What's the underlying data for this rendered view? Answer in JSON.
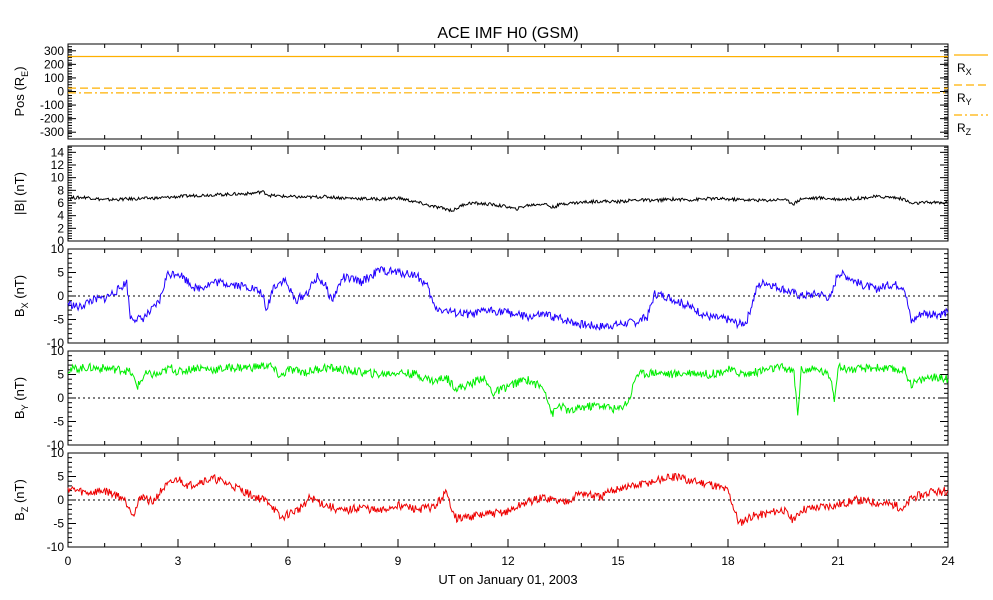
{
  "chart_data": [
    {
      "type": "line",
      "panel": "position",
      "title": "ACE IMF H0 (GSM)",
      "ylabel": "Pos (R_E)",
      "ylabel_main": "Pos (R",
      "ylabel_sub": "E",
      "ylabel_close": ")",
      "ylim": [
        -350,
        350
      ],
      "yticks": [
        -300,
        -200,
        -100,
        0,
        100,
        200,
        300
      ],
      "ytick_labels": [
        "-300",
        "-200",
        "-100",
        "0",
        "100",
        "200",
        "300"
      ],
      "series": [
        {
          "name": "R_X",
          "label_main": "R",
          "label_sub": "X",
          "style": "solid",
          "color": "#FFB000",
          "values": [
            258,
            257
          ]
        },
        {
          "name": "R_Y",
          "label_main": "R",
          "label_sub": "Y",
          "style": "dashed",
          "color": "#FFB000",
          "values": [
            25,
            24
          ]
        },
        {
          "name": "R_Z",
          "label_main": "R",
          "label_sub": "Z",
          "style": "dashdot",
          "color": "#FFB000",
          "values": [
            -10,
            -9
          ]
        }
      ],
      "x": [
        0,
        24
      ],
      "xlim": [
        0,
        24
      ]
    },
    {
      "type": "line",
      "panel": "B_total",
      "ylabel": "|B| (nT)",
      "ylim": [
        0,
        15
      ],
      "yticks": [
        0,
        2,
        4,
        6,
        8,
        10,
        12,
        14
      ],
      "ytick_labels": [
        "0",
        "2",
        "4",
        "6",
        "8",
        "10",
        "12",
        "14"
      ],
      "color": "#000000",
      "xlim": [
        0,
        24
      ],
      "x": [
        0,
        0.5,
        1,
        1.5,
        2,
        2.5,
        3,
        3.5,
        4,
        4.5,
        5,
        5.3,
        5.5,
        6,
        6.5,
        7,
        7.5,
        8,
        8.5,
        9,
        9.3,
        9.6,
        9.9,
        10.2,
        10.5,
        10.8,
        11,
        11.5,
        12,
        12.2,
        12.5,
        13,
        13.2,
        13.5,
        14,
        14.5,
        15,
        15.5,
        16,
        16.5,
        17,
        17.5,
        18,
        18.5,
        19,
        19.5,
        19.8,
        20,
        20.5,
        21,
        21.5,
        22,
        22.5,
        22.8,
        23,
        23.5,
        24
      ],
      "values": [
        6.8,
        6.9,
        6.5,
        6.6,
        6.7,
        6.8,
        7.0,
        7.2,
        7.3,
        7.4,
        7.5,
        7.8,
        7.2,
        7.0,
        6.9,
        7.0,
        6.8,
        6.7,
        6.6,
        6.8,
        6.4,
        6.0,
        5.5,
        5.2,
        4.8,
        5.8,
        6.0,
        5.8,
        5.4,
        5.0,
        5.6,
        5.9,
        5.3,
        5.9,
        6.1,
        6.3,
        6.2,
        6.5,
        6.4,
        6.6,
        6.5,
        6.7,
        6.6,
        6.5,
        6.4,
        6.6,
        5.9,
        6.7,
        6.8,
        6.6,
        6.7,
        7.0,
        6.9,
        6.6,
        5.9,
        6.1,
        6.0
      ]
    },
    {
      "type": "line",
      "panel": "B_x",
      "ylabel": "B_X (nT)",
      "ylabel_main": "B",
      "ylabel_sub": "X",
      "ylabel_close": " (nT)",
      "ylim": [
        -10,
        10
      ],
      "yticks": [
        -10,
        -5,
        0,
        5,
        10
      ],
      "ytick_labels": [
        "-10",
        "-5",
        "0",
        "5",
        "10"
      ],
      "zero_line": true,
      "color": "#2200FF",
      "xlim": [
        0,
        24
      ],
      "x": [
        0,
        0.3,
        0.6,
        1.0,
        1.4,
        1.6,
        1.7,
        2.0,
        2.3,
        2.5,
        2.7,
        3.0,
        3.5,
        4.0,
        4.5,
        5.0,
        5.3,
        5.4,
        5.6,
        5.9,
        6.2,
        6.5,
        6.8,
        7.0,
        7.2,
        7.5,
        8.0,
        8.3,
        8.5,
        9.0,
        9.5,
        9.8,
        10.0,
        10.5,
        11.0,
        11.5,
        12.0,
        12.5,
        13.0,
        13.5,
        14.0,
        14.5,
        15.0,
        15.5,
        15.8,
        16.0,
        16.3,
        16.6,
        17.0,
        17.5,
        18.0,
        18.3,
        18.5,
        18.8,
        19.0,
        19.5,
        20.0,
        20.5,
        20.8,
        21.0,
        21.3,
        21.6,
        22.0,
        22.5,
        22.8,
        23.0,
        23.3,
        23.6,
        24.0
      ],
      "values": [
        -1.5,
        -2.5,
        -1.0,
        -0.5,
        1.5,
        3.0,
        -4.5,
        -5.0,
        -3.0,
        -1.0,
        4.5,
        5.0,
        1.5,
        3.0,
        2.5,
        1.8,
        0.5,
        -3.5,
        2.0,
        3.5,
        -1.0,
        0.5,
        4.0,
        2.5,
        -1.0,
        4.0,
        3.0,
        4.5,
        5.5,
        5.0,
        4.5,
        2.0,
        -2.5,
        -3.5,
        -4.0,
        -3.0,
        -3.5,
        -4.5,
        -4.0,
        -5.0,
        -6.0,
        -6.5,
        -6.0,
        -5.5,
        -4.5,
        0.5,
        0.0,
        -1.0,
        -2.5,
        -4.5,
        -5.0,
        -6.0,
        -5.5,
        2.0,
        3.0,
        1.5,
        0.0,
        0.5,
        -0.5,
        5.0,
        4.0,
        2.5,
        1.5,
        2.5,
        2.0,
        -5.5,
        -3.5,
        -4.0,
        -3.5
      ]
    },
    {
      "type": "line",
      "panel": "B_y",
      "ylabel": "B_Y (nT)",
      "ylabel_main": "B",
      "ylabel_sub": "Y",
      "ylabel_close": " (nT)",
      "ylim": [
        -10,
        10
      ],
      "yticks": [
        -10,
        -5,
        0,
        5,
        10
      ],
      "ytick_labels": [
        "-10",
        "-5",
        "0",
        "5",
        "10"
      ],
      "zero_line": true,
      "color": "#00EE00",
      "xlim": [
        0,
        24
      ],
      "x": [
        0,
        0.5,
        1.0,
        1.5,
        1.7,
        1.9,
        2.1,
        2.5,
        2.8,
        3.0,
        3.5,
        4.0,
        4.5,
        5.0,
        5.5,
        5.8,
        6.0,
        6.5,
        7.0,
        7.5,
        8.0,
        8.5,
        9.0,
        9.5,
        10.0,
        10.3,
        10.6,
        11.0,
        11.3,
        11.6,
        12.0,
        12.5,
        13.0,
        13.2,
        13.4,
        13.7,
        14.0,
        14.5,
        15.0,
        15.3,
        15.5,
        16.0,
        16.5,
        17.0,
        17.5,
        18.0,
        18.5,
        19.0,
        19.5,
        19.8,
        19.9,
        20.0,
        20.5,
        20.8,
        20.9,
        21.0,
        21.5,
        22.0,
        22.5,
        22.8,
        23.0,
        23.5,
        24.0
      ],
      "values": [
        6.0,
        6.5,
        6.3,
        6.0,
        5.5,
        2.5,
        5.0,
        5.0,
        6.5,
        5.5,
        6.5,
        6.0,
        6.5,
        6.5,
        7.0,
        4.5,
        6.0,
        5.5,
        6.5,
        6.0,
        5.5,
        5.0,
        5.5,
        5.0,
        3.5,
        4.5,
        2.0,
        3.0,
        4.5,
        1.0,
        2.5,
        4.0,
        2.0,
        -3.5,
        -1.5,
        -3.0,
        -2.0,
        -1.5,
        -2.5,
        -0.5,
        5.0,
        5.5,
        5.0,
        5.5,
        5.0,
        6.0,
        5.0,
        6.0,
        6.5,
        5.5,
        -3.5,
        6.0,
        6.0,
        4.5,
        0.0,
        6.5,
        6.0,
        6.5,
        6.0,
        6.0,
        3.0,
        4.5,
        4.0
      ]
    },
    {
      "type": "line",
      "panel": "B_z",
      "ylabel": "B_Z (nT)",
      "ylabel_main": "B",
      "ylabel_sub": "Z",
      "ylabel_close": " (nT)",
      "ylim": [
        -10,
        10
      ],
      "yticks": [
        -10,
        -5,
        0,
        5,
        10
      ],
      "ytick_labels": [
        "-10",
        "-5",
        "0",
        "5",
        "10"
      ],
      "zero_line": true,
      "color": "#EE0000",
      "xlim": [
        0,
        24
      ],
      "x": [
        0,
        0.5,
        1.0,
        1.5,
        1.8,
        2.0,
        2.3,
        2.6,
        3.0,
        3.3,
        3.6,
        4.0,
        4.5,
        5.0,
        5.5,
        5.8,
        6.0,
        6.3,
        6.6,
        7.0,
        7.5,
        8.0,
        8.5,
        9.0,
        9.5,
        10.0,
        10.3,
        10.6,
        11.0,
        11.5,
        12.0,
        12.5,
        13.0,
        13.5,
        14.0,
        14.5,
        15.0,
        15.5,
        16.0,
        16.5,
        17.0,
        17.5,
        18.0,
        18.3,
        18.6,
        19.0,
        19.5,
        19.8,
        20.0,
        20.5,
        21.0,
        21.5,
        22.0,
        22.5,
        22.8,
        23.0,
        23.5,
        24.0
      ],
      "values": [
        2.5,
        1.5,
        2.0,
        0.5,
        -3.0,
        1.0,
        -0.5,
        2.5,
        4.5,
        3.0,
        4.0,
        4.5,
        3.0,
        1.0,
        -0.5,
        -4.0,
        -3.0,
        -2.0,
        0.5,
        -1.0,
        -2.5,
        -1.5,
        -2.5,
        -1.0,
        -2.0,
        -1.5,
        1.5,
        -4.0,
        -3.5,
        -3.0,
        -2.5,
        -0.5,
        0.5,
        -0.5,
        1.5,
        0.5,
        2.5,
        3.0,
        4.0,
        5.0,
        4.0,
        3.5,
        2.0,
        -5.0,
        -3.5,
        -3.0,
        -2.0,
        -4.5,
        -2.0,
        -1.5,
        -1.0,
        0.0,
        -0.5,
        -1.0,
        -2.0,
        0.5,
        1.5,
        2.0
      ]
    }
  ],
  "x_axis": {
    "label": "UT on January 01, 2003",
    "ticks": [
      0,
      3,
      6,
      9,
      12,
      15,
      18,
      21,
      24
    ],
    "tick_labels": [
      "0",
      "3",
      "6",
      "9",
      "12",
      "15",
      "18",
      "21",
      "24"
    ]
  }
}
